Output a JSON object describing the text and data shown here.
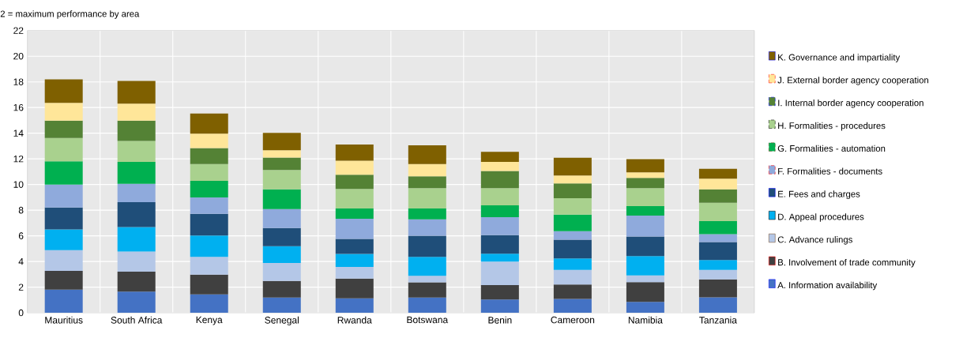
{
  "chart_data": {
    "type": "bar",
    "stacked": true,
    "ylabel": "2 = maximum performance by area",
    "categories": [
      "Mauritius",
      "South Africa",
      "Kenya",
      "Senegal",
      "Rwanda",
      "Botswana",
      "Benin",
      "Cameroon",
      "Namibia",
      "Tanzania"
    ],
    "ylim": [
      0,
      22
    ],
    "yticks": [
      0,
      2,
      4,
      6,
      8,
      10,
      12,
      14,
      16,
      18,
      20,
      22
    ],
    "grid": true,
    "legend": "right",
    "series": [
      {
        "name": "A. Information availability",
        "color": "#4472c4",
        "values": [
          1.81,
          1.65,
          1.44,
          1.19,
          1.13,
          1.19,
          1.03,
          1.09,
          0.86,
          1.21
        ]
      },
      {
        "name": "B. Involvement of trade community",
        "color": "#404040",
        "values": [
          1.46,
          1.56,
          1.54,
          1.3,
          1.54,
          1.18,
          1.13,
          1.11,
          1.53,
          1.4
        ]
      },
      {
        "name": "C. Advance rulings",
        "color": "#b4c7e7",
        "values": [
          1.61,
          1.56,
          1.38,
          1.4,
          0.91,
          0.51,
          1.83,
          1.15,
          0.53,
          0.74
        ]
      },
      {
        "name": "D. Appeal procedures",
        "color": "#00b0f0",
        "values": [
          1.62,
          1.92,
          1.67,
          1.3,
          1.01,
          1.48,
          0.62,
          0.89,
          1.5,
          0.77
        ]
      },
      {
        "name": "E. Fees and charges",
        "color": "#1f4e79",
        "values": [
          1.71,
          1.93,
          1.69,
          1.41,
          1.17,
          1.65,
          1.44,
          1.46,
          1.53,
          1.39
        ]
      },
      {
        "name": "F. Formalities - documents",
        "color": "#8faadc",
        "values": [
          1.79,
          1.44,
          1.27,
          1.49,
          1.57,
          1.27,
          1.4,
          0.66,
          1.62,
          0.62
        ]
      },
      {
        "name": "G. Formalities - automation",
        "color": "#00b050",
        "values": [
          1.81,
          1.71,
          1.3,
          1.54,
          0.8,
          0.85,
          0.92,
          1.29,
          0.74,
          1.01
        ]
      },
      {
        "name": "H. Formalities - procedures",
        "color": "#a9d18e",
        "values": [
          1.81,
          1.63,
          1.31,
          1.5,
          1.52,
          1.58,
          1.34,
          1.28,
          1.4,
          1.44
        ]
      },
      {
        "name": "I. Internal border agency cooperation",
        "color": "#548235",
        "values": [
          1.36,
          1.58,
          1.24,
          0.97,
          1.11,
          0.93,
          1.34,
          1.15,
          0.8,
          1.05
        ]
      },
      {
        "name": "J. External border agency cooperation",
        "color": "#ffe699",
        "values": [
          1.38,
          1.32,
          1.13,
          0.57,
          1.09,
          0.96,
          0.72,
          0.62,
          0.44,
          0.82
        ]
      },
      {
        "name": "K. Governance and impartiality",
        "color": "#7f6000",
        "values": [
          1.83,
          1.77,
          1.56,
          1.36,
          1.26,
          1.45,
          0.78,
          1.38,
          1.03,
          0.78
        ]
      }
    ]
  }
}
